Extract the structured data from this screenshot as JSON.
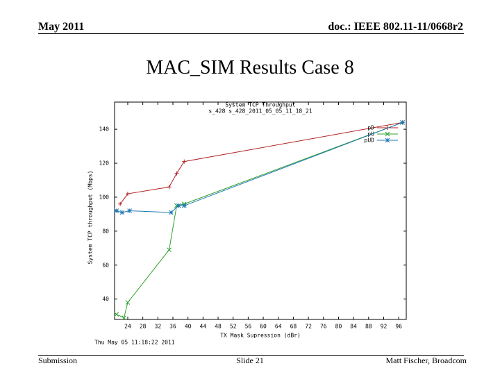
{
  "header": {
    "date": "May 2011",
    "doc": "doc.: IEEE 802.11-11/0668r2"
  },
  "slide_title": "MAC_SIM Results Case 8",
  "footer": {
    "left": "Submission",
    "center": "Slide 21",
    "right": "Matt Fischer, Broadcom"
  },
  "chart_data": {
    "type": "line",
    "title": "System TCP Throughput",
    "subtitle": "s_428 s_428_2011_05_05_11_18_21",
    "x_label": "TX Mask Supression (dBr)",
    "y_label": "System TCP throughput (Mbps)",
    "timestamp": "Thu May 05 11:18:22 2011",
    "xlim": [
      20.5,
      98
    ],
    "ylim": [
      28,
      156
    ],
    "xticks": [
      24,
      28,
      32,
      36,
      40,
      44,
      48,
      52,
      56,
      60,
      64,
      68,
      72,
      76,
      80,
      84,
      88,
      92,
      96
    ],
    "yticks": [
      40,
      60,
      80,
      100,
      120,
      140
    ],
    "grid": false,
    "legend": "top-right",
    "series": [
      {
        "name": "pD",
        "color": "#b22222",
        "marker": "plus",
        "x": [
          22,
          24,
          35,
          37,
          39,
          97
        ],
        "values": [
          96,
          102,
          106,
          114,
          121,
          144
        ]
      },
      {
        "name": "pU",
        "color": "#2ca02c",
        "marker": "cross",
        "x": [
          21,
          23,
          24,
          35,
          37,
          39,
          97
        ],
        "values": [
          31,
          29,
          38,
          69,
          95,
          96,
          144
        ]
      },
      {
        "name": "pUD",
        "color": "#1f77b4",
        "marker": "star",
        "x": [
          21,
          22.5,
          24.5,
          35.5,
          37.5,
          39,
          97
        ],
        "values": [
          92,
          91,
          92,
          91,
          95,
          95,
          144
        ]
      }
    ]
  }
}
